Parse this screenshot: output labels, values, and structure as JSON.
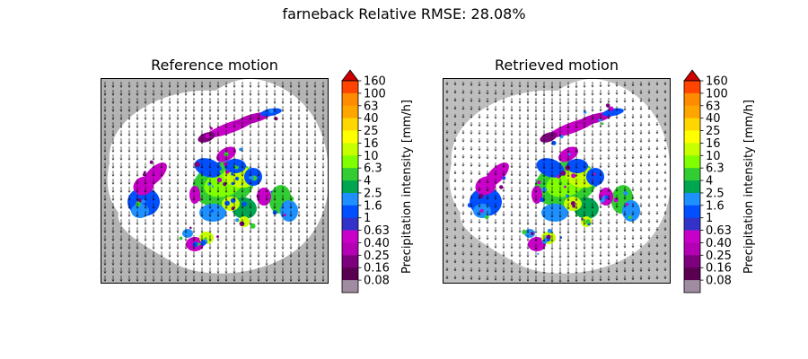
{
  "chart_data": {
    "suptitle": "farneback Relative RMSE: 28.08%",
    "panels": [
      {
        "type": "heatmap",
        "title": "Reference motion",
        "vectors": "dense",
        "outside_color": "#b4b4b4"
      },
      {
        "type": "heatmap",
        "title": "Retrieved motion",
        "vectors": "dense",
        "outside_color": "#bebebe"
      }
    ],
    "colorbar": {
      "label": "Precipitation intensity [mm/h]",
      "ticks": [
        "160",
        "100",
        "63",
        "40",
        "25",
        "16",
        "10",
        "6.3",
        "4",
        "2.5",
        "1.6",
        "1",
        "0.63",
        "0.40",
        "0.25",
        "0.16",
        "0.08"
      ],
      "colors": [
        "#cc0000",
        "#ff4500",
        "#ff8c00",
        "#ffa500",
        "#ffd700",
        "#ffff00",
        "#c8ff00",
        "#7fff00",
        "#32cd32",
        "#00a550",
        "#1e90ff",
        "#0050ff",
        "#3232c8",
        "#c800c8",
        "#b400b4",
        "#7d007d",
        "#5a0050",
        "#a08ca0"
      ],
      "extend": "max"
    }
  }
}
